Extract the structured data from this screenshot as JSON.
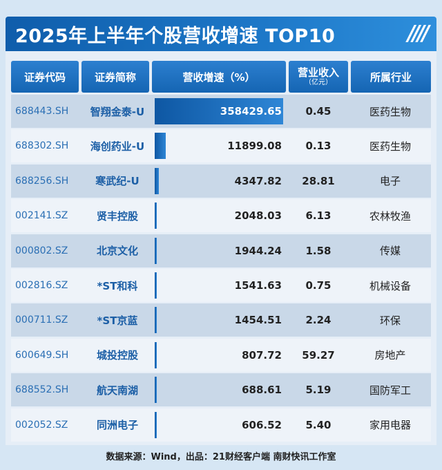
{
  "title": "2025年上半年个股营收增速 TOP10",
  "decor": "////",
  "headers": {
    "code": "证券代码",
    "name": "证券简称",
    "growth": "营收增速（%）",
    "revenue": "营业收入",
    "revenue_unit": "（亿元）",
    "industry": "所属行业"
  },
  "footer": "数据来源：Wind，出品：21财经客户端 南财快讯工作室",
  "chart_data": {
    "type": "table",
    "title": "2025年上半年个股营收增速 TOP10",
    "columns": [
      "证券代码",
      "证券简称",
      "营收增速（%）",
      "营业收入（亿元）",
      "所属行业"
    ],
    "rows": [
      {
        "code": "688443.SH",
        "name": "智翔金泰-U",
        "growth": 358429.65,
        "growth_text": "358429.65",
        "revenue": "0.45",
        "industry": "医药生物"
      },
      {
        "code": "688302.SH",
        "name": "海创药业-U",
        "growth": 11899.08,
        "growth_text": "11899.08",
        "revenue": "0.13",
        "industry": "医药生物"
      },
      {
        "code": "688256.SH",
        "name": "寒武纪-U",
        "growth": 4347.82,
        "growth_text": "4347.82",
        "revenue": "28.81",
        "industry": "电子"
      },
      {
        "code": "002141.SZ",
        "name": "贤丰控股",
        "growth": 2048.03,
        "growth_text": "2048.03",
        "revenue": "6.13",
        "industry": "农林牧渔"
      },
      {
        "code": "000802.SZ",
        "name": "北京文化",
        "growth": 1944.24,
        "growth_text": "1944.24",
        "revenue": "1.58",
        "industry": "传媒"
      },
      {
        "code": "002816.SZ",
        "name": "*ST和科",
        "growth": 1541.63,
        "growth_text": "1541.63",
        "revenue": "0.75",
        "industry": "机械设备"
      },
      {
        "code": "000711.SZ",
        "name": "*ST京蓝",
        "growth": 1454.51,
        "growth_text": "1454.51",
        "revenue": "2.24",
        "industry": "环保"
      },
      {
        "code": "600649.SH",
        "name": "城投控股",
        "growth": 807.72,
        "growth_text": "807.72",
        "revenue": "59.27",
        "industry": "房地产"
      },
      {
        "code": "688552.SH",
        "name": "航天南湖",
        "growth": 688.61,
        "growth_text": "688.61",
        "revenue": "5.19",
        "industry": "国防军工"
      },
      {
        "code": "002052.SZ",
        "name": "同洲电子",
        "growth": 606.52,
        "growth_text": "606.52",
        "revenue": "5.40",
        "industry": "家用电器"
      }
    ]
  },
  "colors": {
    "accent": "#1565b3",
    "bar": "#1d6fc0",
    "code_text": "#2b6fb4",
    "name_text": "#1c5fa6"
  }
}
